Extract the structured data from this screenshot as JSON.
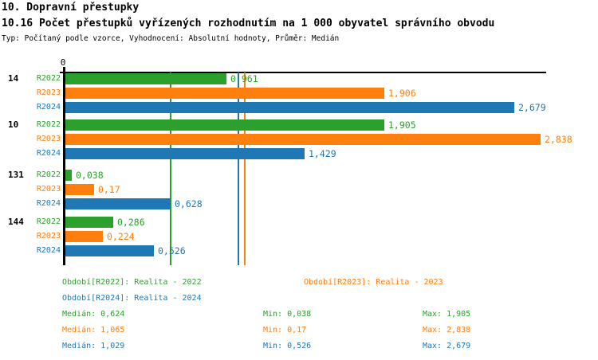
{
  "header": {
    "title": "10. Dopravní přestupky",
    "subtitle": "10.16 Počet přestupků vyřízených rozhodnutím na 1 000 obyvatel správního obvodu",
    "meta": "Typ: Počítaný podle vzorce, Vyhodnocení: Absolutní hodnoty, Průměr: Medián"
  },
  "chart_data": {
    "type": "bar",
    "orientation": "horizontal",
    "title": "10.16 Počet přestupků vyřízených rozhodnutím na 1 000 obyvatel správního obvodu",
    "categories": [
      "14",
      "10",
      "131",
      "144"
    ],
    "xlim": [
      0,
      2.87
    ],
    "grid": false,
    "legend_position": "bottom",
    "axis": {
      "origin_label": "0"
    },
    "series": [
      {
        "name": "R2022",
        "color": "#2ca02c",
        "legend": "Období[R2022]: Realita - 2022",
        "values": [
          0.961,
          1.905,
          0.038,
          0.286
        ],
        "value_labels": [
          "0,961",
          "1,905",
          "0,038",
          "0,286"
        ],
        "median": 0.624,
        "stats": {
          "median": "Medián: 0,624",
          "min": "Min: 0,038",
          "max": "Max: 1,905"
        }
      },
      {
        "name": "R2023",
        "color": "#ff7f0e",
        "legend": "Období[R2023]: Realita - 2023",
        "values": [
          1.906,
          2.838,
          0.17,
          0.224
        ],
        "value_labels": [
          "1,906",
          "2,838",
          "0,17",
          "0,224"
        ],
        "median": 1.065,
        "stats": {
          "median": "Medián: 1,065",
          "min": "Min: 0,17",
          "max": "Max: 2,838"
        }
      },
      {
        "name": "R2024",
        "color": "#1f77b4",
        "legend": "Období[R2024]: Realita - 2024",
        "values": [
          2.679,
          1.429,
          0.628,
          0.526
        ],
        "value_labels": [
          "2,679",
          "1,429",
          "0,628",
          "0,526"
        ],
        "median": 1.029,
        "stats": {
          "median": "Medián: 1,029",
          "min": "Min: 0,526",
          "max": "Max: 2,679"
        }
      }
    ]
  }
}
